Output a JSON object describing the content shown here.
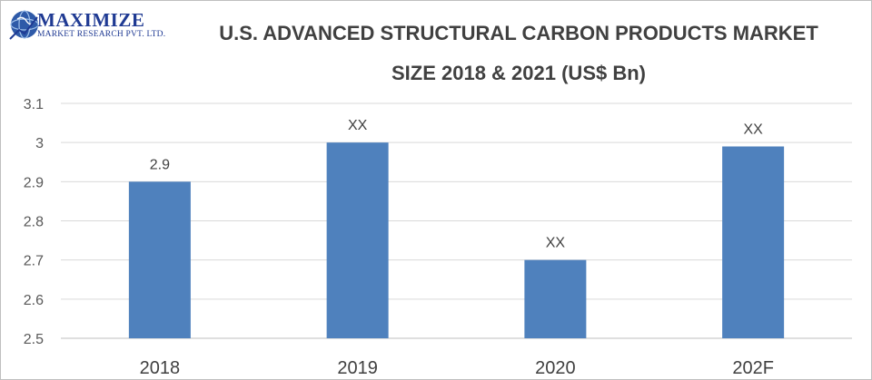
{
  "logo": {
    "name": "MAXIMIZE",
    "subtitle": "MARKET RESEARCH PVT. LTD."
  },
  "chart_data": {
    "type": "bar",
    "title_line1": "U.S. ADVANCED STRUCTURAL CARBON PRODUCTS MARKET",
    "title_line2": "SIZE 2018 & 2021 (US$ Bn)",
    "categories": [
      "2018",
      "2019",
      "2020",
      "202F"
    ],
    "values": [
      2.9,
      3.0,
      2.7,
      2.99
    ],
    "data_labels": [
      "2.9",
      "XX",
      "XX",
      "XX"
    ],
    "ylim": [
      2.5,
      3.1
    ],
    "yticks": [
      "2.5",
      "2.6",
      "2.7",
      "2.8",
      "2.9",
      "3",
      "3.1"
    ],
    "grid": true,
    "bar_color": "#4f81bd"
  }
}
